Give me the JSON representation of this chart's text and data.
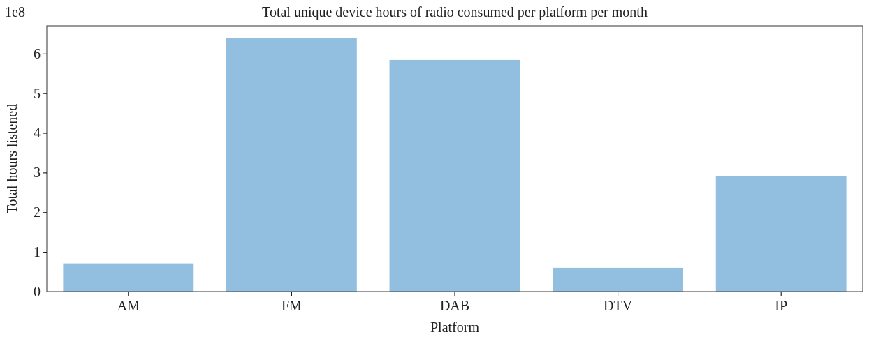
{
  "chart_data": {
    "type": "bar",
    "title": "Total unique device hours of radio consumed per platform per month",
    "xlabel": "Platform",
    "ylabel": "Total hours listened",
    "categories": [
      "AM",
      "FM",
      "DAB",
      "DTV",
      "IP"
    ],
    "values": [
      0.71,
      6.4,
      5.84,
      0.6,
      2.91
    ],
    "color": "#92bfe0",
    "ylim": [
      0,
      6.7
    ],
    "yticks": [
      0,
      1,
      2,
      3,
      4,
      5,
      6
    ],
    "grid": false,
    "annotations": [
      "1e8"
    ]
  }
}
